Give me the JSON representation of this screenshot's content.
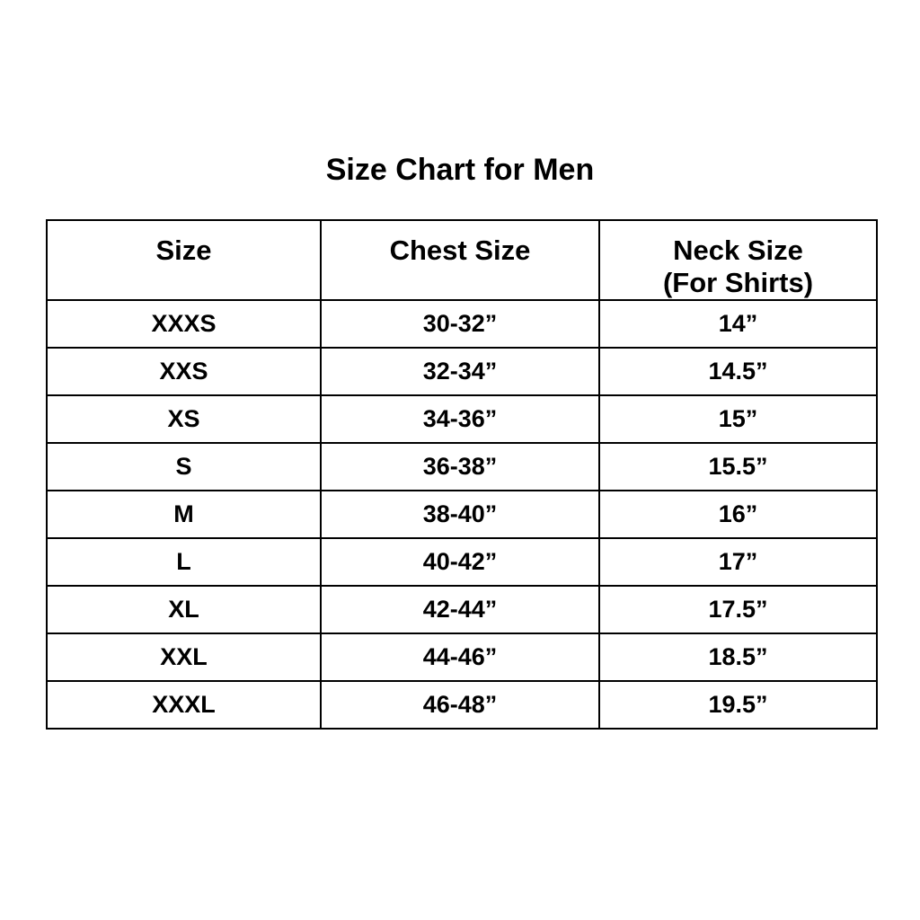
{
  "title": "Size Chart for Men",
  "colors": {
    "background": "#ffffff",
    "text": "#000000",
    "border": "#000000"
  },
  "chart_data": {
    "type": "table",
    "title": "Size Chart for Men",
    "columns": [
      {
        "label": "Size",
        "sublabel": ""
      },
      {
        "label": "Chest Size",
        "sublabel": ""
      },
      {
        "label": "Neck Size",
        "sublabel": "(For Shirts)"
      }
    ],
    "rows": [
      [
        "XXXS",
        "30-32”",
        "14”"
      ],
      [
        "XXS",
        "32-34”",
        "14.5”"
      ],
      [
        "XS",
        "34-36”",
        "15”"
      ],
      [
        "S",
        "36-38”",
        "15.5”"
      ],
      [
        "M",
        "38-40”",
        "16”"
      ],
      [
        "L",
        "40-42”",
        "17”"
      ],
      [
        "XL",
        "42-44”",
        "17.5”"
      ],
      [
        "XXL",
        "44-46”",
        "18.5”"
      ],
      [
        "XXXL",
        "46-48”",
        "19.5”"
      ]
    ]
  }
}
